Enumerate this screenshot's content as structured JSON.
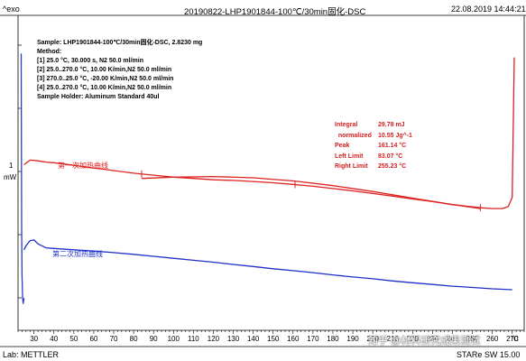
{
  "header": {
    "exo_label": "^exo",
    "title": "20190822-LHP1901844-100℃/30min固化-DSC",
    "datetime": "22.08.2019 14:44:21"
  },
  "sample_info": {
    "sample": "Sample: LHP1901844-100℃/30min固化-DSC, 2.8230 mg",
    "method_label": "Method:",
    "steps": [
      "[1] 25.0 °C, 30.000 s,  N2 50.0 ml/min",
      "[2] 25.0..270.0 °C, 10.00 K/min,N2 50.0 ml/min",
      "[3] 270.0..25.0 °C, -20.00 K/min,N2 50.0 ml/min",
      "[4] 25.0..270.0 °C, 10.00 K/min,N2 50.0 ml/min"
    ],
    "holder": "Sample Holder: Aluminum Standard 40ul"
  },
  "results": [
    {
      "label": "Integral",
      "value": "29.78 mJ"
    },
    {
      "label": "  normalized",
      "value": "10.55 Jg^-1"
    },
    {
      "label": "Peak",
      "value": "161.14 °C"
    },
    {
      "label": "Left Limit",
      "value": "83.07 °C"
    },
    {
      "label": "Right Limit",
      "value": "255.23 °C"
    }
  ],
  "footer": {
    "lab": "Lab: METTLER",
    "software_brand": "STAR",
    "software_version": "e SW 15.00",
    "watermark": "知乎 @材料研究成果测试"
  },
  "colors": {
    "first_heating": "#dd2222",
    "second_heating": "#1f2fc8",
    "cooling": "#2a3bd0",
    "axis": "#000000"
  },
  "chart_data": {
    "type": "line",
    "xlabel": "°C",
    "ylabel": "mW",
    "y_scale_label": "1",
    "x_ticks": [
      30,
      40,
      50,
      60,
      70,
      80,
      90,
      100,
      110,
      120,
      130,
      140,
      150,
      160,
      170,
      180,
      190,
      200,
      210,
      220,
      230,
      240,
      250,
      260,
      270
    ],
    "xlim": [
      22,
      276
    ],
    "series": [
      {
        "name": "第一次加热曲线",
        "color": "#dd2222",
        "x": [
          25,
          28,
          32,
          36,
          40,
          50,
          60,
          70,
          80,
          90,
          100,
          110,
          120,
          130,
          140,
          150,
          160,
          170,
          180,
          190,
          200,
          210,
          220,
          230,
          240,
          250,
          255,
          260,
          265,
          268,
          270,
          271
        ],
        "y": [
          3.0,
          3.35,
          3.3,
          3.2,
          3.15,
          2.95,
          2.75,
          2.55,
          2.35,
          2.2,
          2.05,
          1.95,
          1.85,
          1.8,
          1.72,
          1.62,
          1.5,
          1.35,
          1.18,
          1.0,
          0.8,
          0.6,
          0.38,
          0.18,
          -0.05,
          -0.22,
          -0.3,
          -0.35,
          -0.35,
          -0.2,
          0.5,
          11.2
        ],
        "markers": [
          {
            "x": 84
          },
          {
            "x": 161
          },
          {
            "x": 254
          }
        ]
      },
      {
        "name": "",
        "color": "#dd2222",
        "x": [
          84,
          100,
          120,
          140,
          161,
          180,
          200,
          220,
          240,
          254
        ],
        "y": [
          1.95,
          2.05,
          2.1,
          2.0,
          1.75,
          1.4,
          0.95,
          0.45,
          -0.05,
          -0.35
        ]
      },
      {
        "name": "第二次加热曲线",
        "color": "#1f2fc8",
        "x": [
          25,
          26,
          28,
          30,
          32,
          36,
          40,
          50,
          60,
          70,
          80,
          90,
          100,
          110,
          120,
          130,
          140,
          150,
          160,
          170,
          180,
          190,
          200,
          210,
          220,
          230,
          240,
          250,
          260,
          270
        ],
        "y": [
          -3.5,
          -3.2,
          -2.8,
          -2.75,
          -3.05,
          -3.35,
          -3.4,
          -3.5,
          -3.6,
          -3.72,
          -3.85,
          -4.0,
          -4.15,
          -4.3,
          -4.45,
          -4.62,
          -4.78,
          -4.95,
          -5.1,
          -5.25,
          -5.42,
          -5.58,
          -5.72,
          -5.88,
          -6.02,
          -6.15,
          -6.28,
          -6.38,
          -6.48,
          -6.55
        ]
      },
      {
        "name": "",
        "color": "#2a3bd0",
        "x": [
          23.6,
          23.8,
          24.0,
          24.3,
          24.6,
          25.0
        ],
        "y": [
          11.5,
          -2.0,
          -5.5,
          -7.2,
          -7.6,
          -7.2
        ]
      }
    ]
  }
}
